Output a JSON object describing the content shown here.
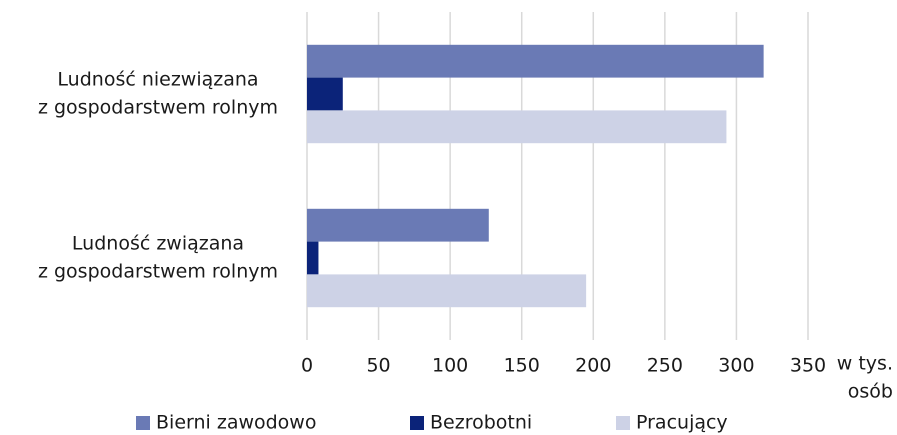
{
  "chart_data": {
    "type": "bar",
    "orientation": "horizontal",
    "categories": [
      [
        "Ludność niezwiązana",
        "z gospodarstwem rolnym"
      ],
      [
        "Ludność związana",
        "z gospodarstwem rolnym"
      ]
    ],
    "series": [
      {
        "name": "Bierni zawodowo",
        "color": "#6a7ab5",
        "values": [
          319,
          127
        ]
      },
      {
        "name": "Bezrobotni",
        "color": "#0b2379",
        "values": [
          25,
          8
        ]
      },
      {
        "name": "Pracujący",
        "color": "#cdd2e6",
        "values": [
          293,
          195
        ]
      }
    ],
    "x_label": [
      "w tys.",
      "osób"
    ],
    "xlim": [
      0,
      350
    ],
    "xticks": [
      0,
      50,
      100,
      150,
      200,
      250,
      300,
      350
    ],
    "grid": true,
    "legend": "bottom"
  }
}
